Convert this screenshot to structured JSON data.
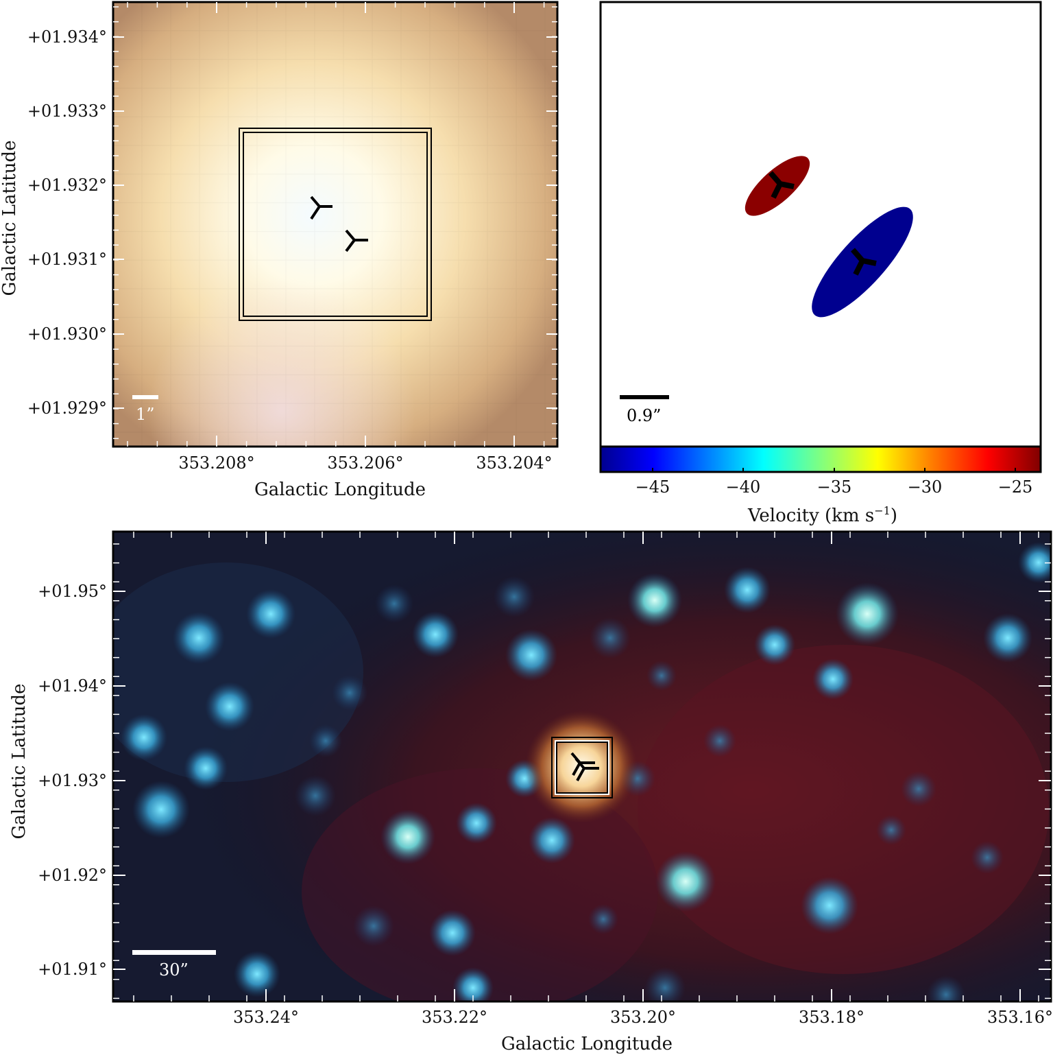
{
  "panels": {
    "top_left": {
      "ylabel": "Galactic Latitude",
      "xlabel": "Galactic Longitude",
      "yticks": [
        "+01.934°",
        "+01.933°",
        "+01.932°",
        "+01.931°",
        "+01.930°",
        "+01.929°"
      ],
      "xticks": [
        "353.208°",
        "353.206°",
        "353.204°"
      ],
      "scale_bar": "1”",
      "scale_bar_color": "#ffffff"
    },
    "top_right": {
      "scale_bar": "0.9”",
      "scale_bar_color": "#000000",
      "colorbar": {
        "label_main": "Velocity (km s",
        "label_sup": "−1",
        "label_end": ")",
        "ticks": [
          "−45",
          "−40",
          "−35",
          "−30",
          "−25"
        ],
        "colors": [
          "#00008f",
          "#0000ff",
          "#0080ff",
          "#00ffff",
          "#80ff80",
          "#ffff00",
          "#ff8000",
          "#ff0000",
          "#800000"
        ]
      },
      "components": [
        {
          "velocity": -25,
          "color": "#8b0000"
        },
        {
          "velocity": -47,
          "color": "#00008f"
        }
      ]
    },
    "bottom": {
      "ylabel": "Galactic Latitude",
      "xlabel": "Galactic Longitude",
      "yticks": [
        "+01.95°",
        "+01.94°",
        "+01.93°",
        "+01.92°",
        "+01.91°"
      ],
      "xticks": [
        "353.24°",
        "353.22°",
        "353.20°",
        "353.18°",
        "353.16°"
      ],
      "scale_bar": "30”",
      "scale_bar_color": "#ffffff"
    }
  },
  "marker_icon": "tri-left-marker-icon"
}
